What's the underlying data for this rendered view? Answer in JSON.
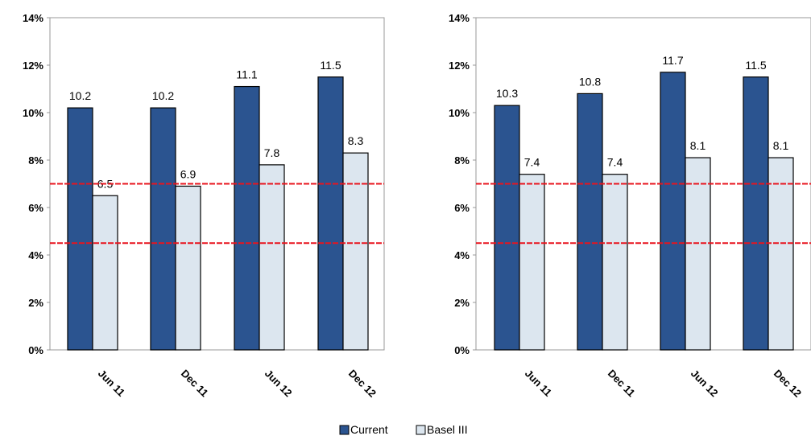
{
  "chart_data": [
    {
      "type": "bar",
      "categories": [
        "Jun 11",
        "Dec 11",
        "Jun 12",
        "Dec 12"
      ],
      "series": [
        {
          "name": "Current",
          "values": [
            10.2,
            10.2,
            11.1,
            11.5
          ]
        },
        {
          "name": "Basel III",
          "values": [
            6.5,
            6.9,
            7.8,
            8.3
          ]
        }
      ],
      "data_labels": [
        [
          "10.2",
          "10.2",
          "11.1",
          "11.5"
        ],
        [
          "6.5",
          "6.9",
          "7.8",
          "8.3"
        ]
      ],
      "ylim": [
        0,
        14
      ],
      "yticks": [
        "0%",
        "2%",
        "4%",
        "6%",
        "8%",
        "10%",
        "12%",
        "14%"
      ],
      "reference_lines": [
        7.0,
        4.5
      ],
      "grid": false
    },
    {
      "type": "bar",
      "categories": [
        "Jun 11",
        "Dec 11",
        "Jun 12",
        "Dec 12"
      ],
      "series": [
        {
          "name": "Current",
          "values": [
            10.3,
            10.8,
            11.7,
            11.5
          ]
        },
        {
          "name": "Basel III",
          "values": [
            7.4,
            7.4,
            8.1,
            8.1
          ]
        }
      ],
      "data_labels": [
        [
          "10.3",
          "10.8",
          "11.7",
          "11.5"
        ],
        [
          "7.4",
          "7.4",
          "8.1",
          "8.1"
        ]
      ],
      "ylim": [
        0,
        14
      ],
      "yticks": [
        "0%",
        "2%",
        "4%",
        "6%",
        "8%",
        "10%",
        "12%",
        "14%"
      ],
      "reference_lines": [
        7.0,
        4.5
      ],
      "grid": false
    }
  ],
  "legend": {
    "position": "bottom-center",
    "items": [
      {
        "label": "Current",
        "color": "#2b5490"
      },
      {
        "label": "Basel III",
        "color": "#dce6ef"
      }
    ]
  },
  "colors": {
    "current": "#2b5490",
    "basel": "#dce6ef",
    "reference_line": "#e8141e"
  }
}
